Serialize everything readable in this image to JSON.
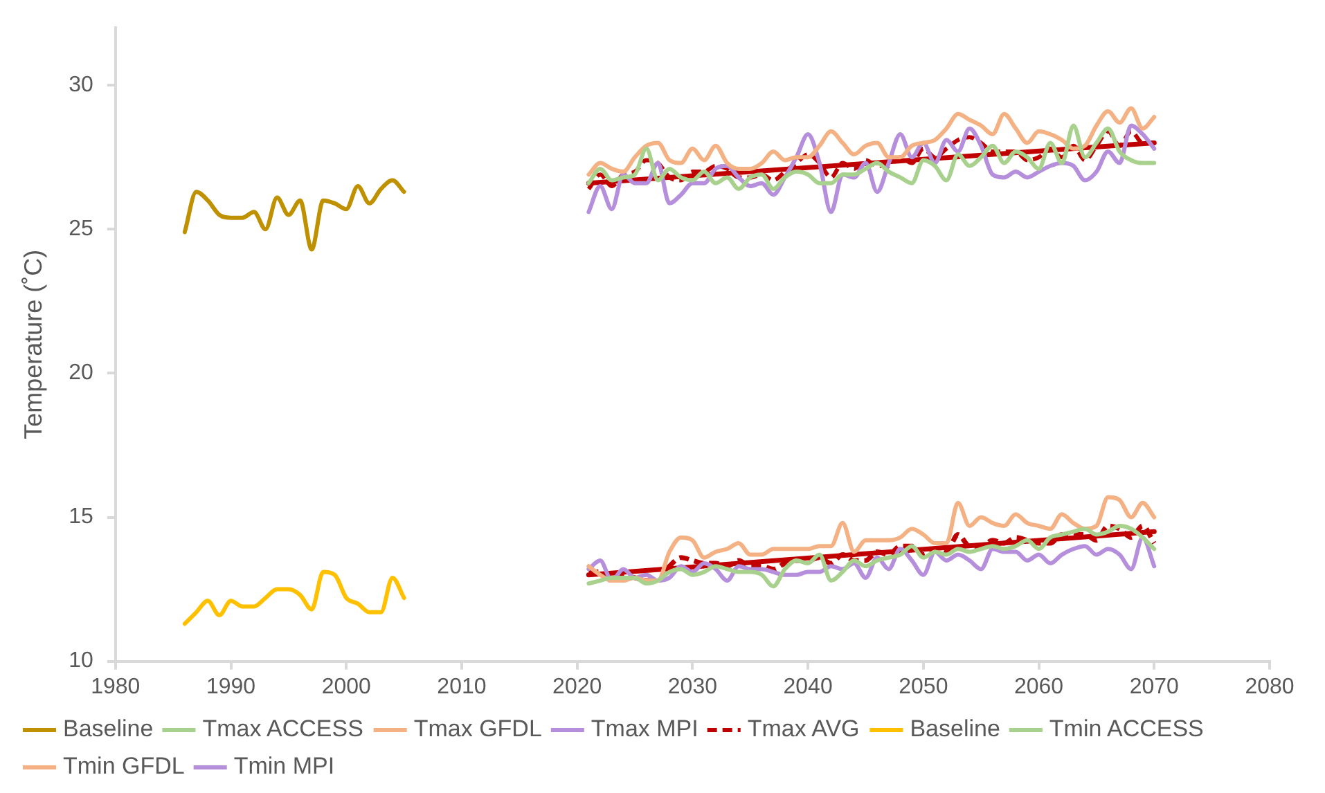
{
  "chart_data": {
    "type": "line",
    "ylabel": "Temperature (˚C)",
    "xlim": [
      1980,
      2080
    ],
    "xticks": [
      1980,
      1990,
      2000,
      2010,
      2020,
      2030,
      2040,
      2050,
      2060,
      2070,
      2080
    ],
    "ylim": [
      10,
      32
    ],
    "yticks": [
      10,
      15,
      20,
      25,
      30
    ],
    "grid": false,
    "legend": "bottom",
    "marker": "none",
    "line_style": "solid",
    "series": [
      {
        "name": "Baseline",
        "color": "#bf9000",
        "x": [
          1986,
          1987,
          1988,
          1989,
          1990,
          1991,
          1992,
          1993,
          1994,
          1995,
          1996,
          1997,
          1998,
          1999,
          2000,
          2001,
          2002,
          2003,
          2004,
          2005
        ],
        "values": [
          24.9,
          26.3,
          26.0,
          25.5,
          25.4,
          25.4,
          25.6,
          25.0,
          26.1,
          25.5,
          26.0,
          24.3,
          26.0,
          25.9,
          25.7,
          26.5,
          25.9,
          26.4,
          26.7,
          26.3
        ]
      },
      {
        "name": "Tmax ACCESS",
        "color": "#a9d18e",
        "x": [
          2021,
          2022,
          2023,
          2024,
          2025,
          2026,
          2027,
          2028,
          2029,
          2030,
          2031,
          2032,
          2033,
          2034,
          2035,
          2036,
          2037,
          2038,
          2039,
          2040,
          2041,
          2042,
          2043,
          2044,
          2045,
          2046,
          2047,
          2048,
          2049,
          2050,
          2051,
          2052,
          2053,
          2054,
          2055,
          2056,
          2057,
          2058,
          2059,
          2060,
          2061,
          2062,
          2063,
          2064,
          2065,
          2066,
          2067,
          2068,
          2069,
          2070
        ],
        "values": [
          26.6,
          27.1,
          26.7,
          26.8,
          26.9,
          27.8,
          26.7,
          27.1,
          26.8,
          26.7,
          27.0,
          26.6,
          26.8,
          26.4,
          26.8,
          26.9,
          26.4,
          26.8,
          27.0,
          26.9,
          26.6,
          26.6,
          26.9,
          26.9,
          27.1,
          27.3,
          27.0,
          26.8,
          26.6,
          27.4,
          27.2,
          26.7,
          27.6,
          27.2,
          27.5,
          27.9,
          27.3,
          27.7,
          27.5,
          27.1,
          28.0,
          27.3,
          28.6,
          27.5,
          28.0,
          28.5,
          27.7,
          27.4,
          27.3,
          27.3
        ]
      },
      {
        "name": "Tmax GFDL",
        "color": "#f4b183",
        "x": [
          2021,
          2022,
          2023,
          2024,
          2025,
          2026,
          2027,
          2028,
          2029,
          2030,
          2031,
          2032,
          2033,
          2034,
          2035,
          2036,
          2037,
          2038,
          2039,
          2040,
          2041,
          2042,
          2043,
          2044,
          2045,
          2046,
          2047,
          2048,
          2049,
          2050,
          2051,
          2052,
          2053,
          2054,
          2055,
          2056,
          2057,
          2058,
          2059,
          2060,
          2061,
          2062,
          2063,
          2064,
          2065,
          2066,
          2067,
          2068,
          2069,
          2070
        ],
        "values": [
          26.9,
          27.3,
          27.1,
          27.0,
          27.5,
          27.9,
          28.0,
          27.4,
          27.3,
          27.8,
          27.4,
          27.9,
          27.3,
          27.1,
          27.1,
          27.3,
          27.7,
          27.4,
          27.5,
          27.5,
          27.9,
          28.4,
          28.0,
          27.6,
          27.9,
          28.0,
          27.5,
          27.5,
          27.9,
          28.0,
          28.1,
          28.5,
          29.0,
          28.8,
          28.6,
          28.3,
          29.0,
          28.5,
          28.0,
          28.4,
          28.3,
          28.1,
          27.8,
          27.9,
          28.6,
          29.1,
          28.7,
          29.2,
          28.5,
          28.9
        ]
      },
      {
        "name": "Tmax MPI",
        "color": "#b58fdc",
        "x": [
          2021,
          2022,
          2023,
          2024,
          2025,
          2026,
          2027,
          2028,
          2029,
          2030,
          2031,
          2032,
          2033,
          2034,
          2035,
          2036,
          2037,
          2038,
          2039,
          2040,
          2041,
          2042,
          2043,
          2044,
          2045,
          2046,
          2047,
          2048,
          2049,
          2050,
          2051,
          2052,
          2053,
          2054,
          2055,
          2056,
          2057,
          2058,
          2059,
          2060,
          2061,
          2062,
          2063,
          2064,
          2065,
          2066,
          2067,
          2068,
          2069,
          2070
        ],
        "values": [
          25.6,
          26.5,
          25.7,
          26.9,
          26.6,
          26.6,
          27.3,
          25.9,
          26.2,
          26.6,
          26.6,
          27.1,
          27.2,
          26.8,
          26.5,
          26.6,
          26.2,
          26.8,
          27.5,
          28.3,
          27.3,
          25.6,
          26.9,
          26.8,
          27.3,
          26.3,
          27.3,
          28.3,
          27.5,
          28.0,
          27.3,
          28.1,
          27.7,
          28.5,
          27.9,
          26.9,
          26.8,
          27.0,
          26.8,
          27.0,
          27.2,
          27.3,
          27.2,
          26.7,
          27.0,
          27.7,
          27.3,
          28.6,
          28.3,
          27.8
        ]
      },
      {
        "name": "Tmax AVG",
        "color": "#c00000",
        "line_style": "dashed",
        "x": [
          2021,
          2022,
          2023,
          2024,
          2025,
          2026,
          2027,
          2028,
          2029,
          2030,
          2031,
          2032,
          2033,
          2034,
          2035,
          2036,
          2037,
          2038,
          2039,
          2040,
          2041,
          2042,
          2043,
          2044,
          2045,
          2046,
          2047,
          2048,
          2049,
          2050,
          2051,
          2052,
          2053,
          2054,
          2055,
          2056,
          2057,
          2058,
          2059,
          2060,
          2061,
          2062,
          2063,
          2064,
          2065,
          2066,
          2067,
          2068,
          2069,
          2070
        ],
        "values": [
          26.4,
          26.9,
          26.5,
          26.9,
          27.0,
          27.4,
          27.3,
          26.8,
          26.7,
          27.0,
          27.0,
          27.2,
          27.1,
          26.8,
          26.8,
          26.9,
          26.7,
          27.0,
          27.3,
          27.6,
          27.3,
          26.8,
          27.3,
          27.1,
          27.4,
          27.2,
          27.2,
          27.5,
          27.3,
          27.8,
          27.5,
          27.8,
          28.1,
          28.2,
          28.0,
          27.7,
          27.7,
          27.7,
          27.4,
          27.5,
          27.8,
          27.5,
          27.9,
          27.4,
          27.9,
          28.4,
          27.9,
          28.4,
          28.0,
          28.0
        ]
      },
      {
        "name": "Baseline",
        "color": "#ffc000",
        "x": [
          1986,
          1987,
          1988,
          1989,
          1990,
          1991,
          1992,
          1993,
          1994,
          1995,
          1996,
          1997,
          1998,
          1999,
          2000,
          2001,
          2002,
          2003,
          2004,
          2005
        ],
        "values": [
          11.3,
          11.7,
          12.1,
          11.6,
          12.1,
          11.9,
          11.9,
          12.2,
          12.5,
          12.5,
          12.3,
          11.8,
          13.1,
          13.0,
          12.2,
          12.0,
          11.7,
          11.7,
          12.9,
          12.2
        ]
      },
      {
        "name": "Tmin ACCESS",
        "color": "#a9d18e",
        "x": [
          2021,
          2022,
          2023,
          2024,
          2025,
          2026,
          2027,
          2028,
          2029,
          2030,
          2031,
          2032,
          2033,
          2034,
          2035,
          2036,
          2037,
          2038,
          2039,
          2040,
          2041,
          2042,
          2043,
          2044,
          2045,
          2046,
          2047,
          2048,
          2049,
          2050,
          2051,
          2052,
          2053,
          2054,
          2055,
          2056,
          2057,
          2058,
          2059,
          2060,
          2061,
          2062,
          2063,
          2064,
          2065,
          2066,
          2067,
          2068,
          2069,
          2070
        ],
        "values": [
          12.7,
          12.8,
          12.9,
          12.9,
          12.9,
          12.7,
          12.8,
          13.1,
          13.2,
          13.0,
          13.1,
          13.3,
          13.2,
          13.1,
          13.1,
          13.0,
          12.6,
          13.2,
          13.5,
          13.4,
          13.7,
          12.8,
          13.1,
          13.5,
          13.3,
          13.5,
          13.6,
          13.7,
          14.0,
          13.6,
          13.8,
          13.7,
          13.9,
          13.8,
          13.9,
          14.0,
          13.9,
          14.0,
          14.2,
          13.9,
          14.3,
          14.4,
          14.5,
          14.6,
          14.4,
          14.5,
          14.7,
          14.6,
          14.3,
          13.9
        ]
      },
      {
        "name": "Tmin GFDL",
        "color": "#f4b183",
        "x": [
          2021,
          2022,
          2023,
          2024,
          2025,
          2026,
          2027,
          2028,
          2029,
          2030,
          2031,
          2032,
          2033,
          2034,
          2035,
          2036,
          2037,
          2038,
          2039,
          2040,
          2041,
          2042,
          2043,
          2044,
          2045,
          2046,
          2047,
          2048,
          2049,
          2050,
          2051,
          2052,
          2053,
          2054,
          2055,
          2056,
          2057,
          2058,
          2059,
          2060,
          2061,
          2062,
          2063,
          2064,
          2065,
          2066,
          2067,
          2068,
          2069,
          2070
        ],
        "values": [
          13.3,
          13.0,
          12.8,
          12.8,
          12.9,
          12.8,
          12.8,
          13.8,
          14.3,
          14.2,
          13.6,
          13.8,
          13.9,
          14.1,
          13.7,
          13.7,
          13.9,
          13.9,
          13.9,
          13.9,
          14.0,
          14.0,
          14.8,
          13.8,
          14.2,
          14.2,
          14.2,
          14.3,
          14.6,
          14.4,
          14.1,
          14.1,
          15.5,
          14.7,
          15.0,
          14.8,
          14.7,
          15.1,
          14.8,
          14.7,
          14.6,
          15.1,
          14.8,
          14.6,
          14.7,
          15.7,
          15.6,
          15.0,
          15.5,
          15.0
        ]
      },
      {
        "name": "Tmin MPI",
        "color": "#b58fdc",
        "x": [
          2021,
          2022,
          2023,
          2024,
          2025,
          2026,
          2027,
          2028,
          2029,
          2030,
          2031,
          2032,
          2033,
          2034,
          2035,
          2036,
          2037,
          2038,
          2039,
          2040,
          2041,
          2042,
          2043,
          2044,
          2045,
          2046,
          2047,
          2048,
          2049,
          2050,
          2051,
          2052,
          2053,
          2054,
          2055,
          2056,
          2057,
          2058,
          2059,
          2060,
          2061,
          2062,
          2063,
          2064,
          2065,
          2066,
          2067,
          2068,
          2069,
          2070
        ],
        "values": [
          13.2,
          13.5,
          12.8,
          13.2,
          12.9,
          13.0,
          12.8,
          12.9,
          13.3,
          13.1,
          13.4,
          13.2,
          12.8,
          13.3,
          13.2,
          13.2,
          13.1,
          13.0,
          13.0,
          13.1,
          13.1,
          13.3,
          13.2,
          13.4,
          12.9,
          13.6,
          13.2,
          13.9,
          13.5,
          13.0,
          13.8,
          13.5,
          13.7,
          13.5,
          13.2,
          13.9,
          13.8,
          13.8,
          13.5,
          13.7,
          13.4,
          13.7,
          13.9,
          14.0,
          13.7,
          13.9,
          13.7,
          13.2,
          14.3,
          13.3
        ]
      },
      {
        "color": "#c00000",
        "line_style": "dashed",
        "x": [
          2021,
          2022,
          2023,
          2024,
          2025,
          2026,
          2027,
          2028,
          2029,
          2030,
          2031,
          2032,
          2033,
          2034,
          2035,
          2036,
          2037,
          2038,
          2039,
          2040,
          2041,
          2042,
          2043,
          2044,
          2045,
          2046,
          2047,
          2048,
          2049,
          2050,
          2051,
          2052,
          2053,
          2054,
          2055,
          2056,
          2057,
          2058,
          2059,
          2060,
          2061,
          2062,
          2063,
          2064,
          2065,
          2066,
          2067,
          2068,
          2069,
          2070
        ],
        "values": [
          13.1,
          13.1,
          12.8,
          13.0,
          12.9,
          12.8,
          12.8,
          13.3,
          13.6,
          13.5,
          13.4,
          13.4,
          13.3,
          13.5,
          13.3,
          13.3,
          13.2,
          13.4,
          13.5,
          13.5,
          13.6,
          13.4,
          13.7,
          13.5,
          13.5,
          13.8,
          13.7,
          14.0,
          14.0,
          13.7,
          13.9,
          13.8,
          14.4,
          14.0,
          14.0,
          14.2,
          14.1,
          14.3,
          14.2,
          14.1,
          14.1,
          14.4,
          14.4,
          14.4,
          14.2,
          14.7,
          14.6,
          14.3,
          14.7,
          14.1
        ]
      },
      {
        "color": "#c00000",
        "x": [
          2021,
          2070
        ],
        "values": [
          26.6,
          28.0
        ]
      },
      {
        "color": "#c00000",
        "x": [
          2021,
          2070
        ],
        "values": [
          13.0,
          14.5
        ]
      }
    ]
  }
}
